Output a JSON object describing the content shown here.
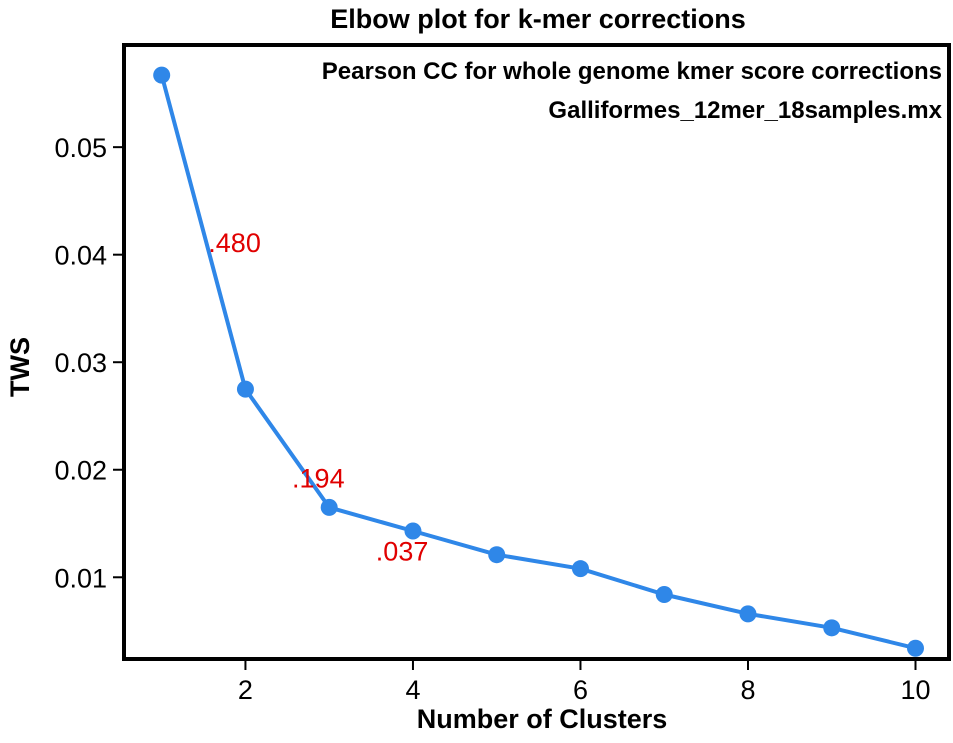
{
  "chart_data": {
    "type": "line",
    "title": "Elbow plot for k-mer corrections",
    "xlabel": "Number of Clusters",
    "ylabel": "TWS",
    "annotations": [
      "Pearson CC for whole genome kmer score corrections",
      "Galliformes_12mer_18samples.mx"
    ],
    "x": [
      1,
      2,
      3,
      4,
      5,
      6,
      7,
      8,
      9,
      10
    ],
    "values": [
      0.0567,
      0.0275,
      0.0165,
      0.0143,
      0.0121,
      0.0108,
      0.0084,
      0.0066,
      0.0053,
      0.0034
    ],
    "x_ticks": [
      2,
      4,
      6,
      8,
      10
    ],
    "x_tick_labels": [
      "2",
      "4",
      "6",
      "8",
      "10"
    ],
    "y_ticks": [
      0.01,
      0.02,
      0.03,
      0.04,
      0.05
    ],
    "y_tick_labels": [
      "0.01",
      "0.02",
      "0.03",
      "0.04",
      "0.05"
    ],
    "xlim": [
      0.55,
      10.4
    ],
    "ylim": [
      0.0024,
      0.0595
    ],
    "grid": false,
    "legend": "none",
    "data_labels": [
      {
        "x": 1.5,
        "y": 0.0412,
        "text": ".480"
      },
      {
        "x": 2.5,
        "y": 0.0193,
        "text": ".194"
      },
      {
        "x": 3.5,
        "y": 0.0125,
        "text": ".037"
      }
    ],
    "colors": {
      "line": "#2f87e8",
      "label": "#e00000",
      "frame": "#000000"
    }
  }
}
